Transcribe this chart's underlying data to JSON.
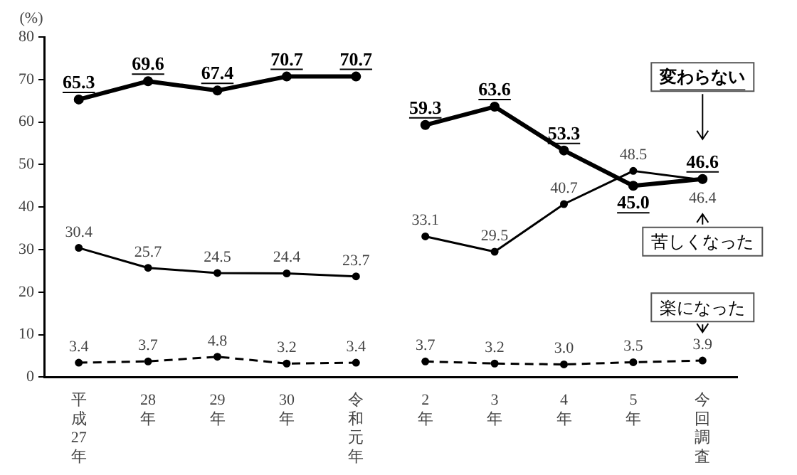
{
  "chart_data": {
    "type": "line",
    "ylabel": "(%)",
    "categories": [
      "平成27年",
      "28年",
      "29年",
      "30年",
      "令和元年",
      "2年",
      "3年",
      "4年",
      "5年",
      "今回調査"
    ],
    "series": [
      {
        "color": "#000000",
        "line_style": "solid",
        "values": [
          65.3,
          69.6,
          67.4,
          70.7,
          70.7,
          null,
          null,
          null,
          null,
          null
        ],
        "value_labels": [
          "65.3",
          "69.6",
          "67.4",
          "70.7",
          "70.7",
          null,
          null,
          null,
          null,
          null
        ]
      },
      {
        "color": "#000000",
        "line_style": "solid",
        "values": [
          30.4,
          25.7,
          24.5,
          24.4,
          23.7,
          null,
          null,
          null,
          null,
          null
        ],
        "value_labels": [
          "30.4",
          "25.7",
          "24.5",
          "24.4",
          "23.7",
          null,
          null,
          null,
          null,
          null
        ]
      },
      {
        "color": "#000000",
        "line_style": "dashed",
        "values": [
          3.4,
          3.7,
          4.8,
          3.2,
          3.4,
          null,
          null,
          null,
          null,
          null
        ],
        "value_labels": [
          "3.4",
          "3.7",
          "4.8",
          "3.2",
          "3.4",
          null,
          null,
          null,
          null,
          null
        ]
      },
      {
        "name": "変わらない",
        "color": "#000000",
        "line_style": "solid",
        "values": [
          null,
          null,
          null,
          null,
          null,
          59.3,
          63.6,
          53.3,
          45.0,
          46.6
        ],
        "value_labels": [
          null,
          null,
          null,
          null,
          null,
          "59.3",
          "63.6",
          "53.3",
          "45.0",
          "46.6"
        ]
      },
      {
        "name": "苦しくなった",
        "color": "#000000",
        "line_style": "solid",
        "values": [
          null,
          null,
          null,
          null,
          null,
          33.1,
          29.5,
          40.7,
          48.5,
          46.4
        ],
        "value_labels": [
          null,
          null,
          null,
          null,
          null,
          "33.1",
          "29.5",
          "40.7",
          "48.5",
          "46.4"
        ]
      },
      {
        "name": "楽になった",
        "color": "#000000",
        "line_style": "dashed",
        "values": [
          null,
          null,
          null,
          null,
          null,
          3.7,
          3.2,
          3.0,
          3.5,
          3.9
        ],
        "value_labels": [
          null,
          null,
          null,
          null,
          null,
          "3.7",
          "3.2",
          "3.0",
          "3.5",
          "3.9"
        ]
      }
    ],
    "ylim": [
      0,
      80
    ],
    "yticks": [
      0,
      10,
      20,
      30,
      40,
      50,
      60,
      70,
      80
    ],
    "grid": false,
    "legend": "right",
    "marker": "circle"
  }
}
